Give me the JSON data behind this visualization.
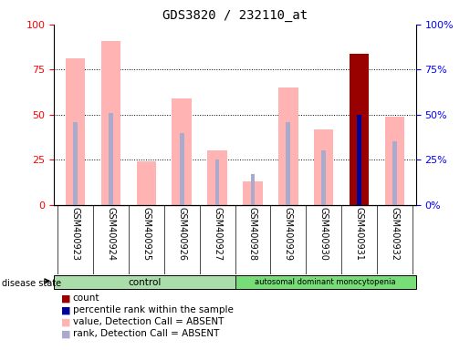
{
  "title": "GDS3820 / 232110_at",
  "samples": [
    "GSM400923",
    "GSM400924",
    "GSM400925",
    "GSM400926",
    "GSM400927",
    "GSM400928",
    "GSM400929",
    "GSM400930",
    "GSM400931",
    "GSM400932"
  ],
  "value_absent": [
    81,
    91,
    24,
    59,
    30,
    13,
    65,
    42,
    null,
    49
  ],
  "rank_absent": [
    46,
    51,
    null,
    40,
    25,
    17,
    46,
    30,
    null,
    35
  ],
  "count_present": [
    null,
    null,
    null,
    null,
    null,
    null,
    null,
    null,
    84,
    null
  ],
  "percentile_present": [
    null,
    null,
    null,
    null,
    null,
    null,
    null,
    null,
    50,
    null
  ],
  "control_samples": 5,
  "disease_samples": 5,
  "control_label": "control",
  "disease_label": "autosomal dominant monocytopenia",
  "ylim": [
    0,
    100
  ],
  "yticks": [
    0,
    25,
    50,
    75,
    100
  ],
  "color_value_absent": "#FFB3B3",
  "color_rank_absent": "#AAAACC",
  "color_count_present": "#990000",
  "color_percentile_present": "#000099",
  "color_control_bg": "#AADDAA",
  "color_disease_bg": "#77DD77",
  "color_tickbg": "#DDDDDD",
  "legend_items": [
    "count",
    "percentile rank within the sample",
    "value, Detection Call = ABSENT",
    "rank, Detection Call = ABSENT"
  ],
  "legend_colors": [
    "#990000",
    "#000099",
    "#FFB3B3",
    "#AAAACC"
  ]
}
